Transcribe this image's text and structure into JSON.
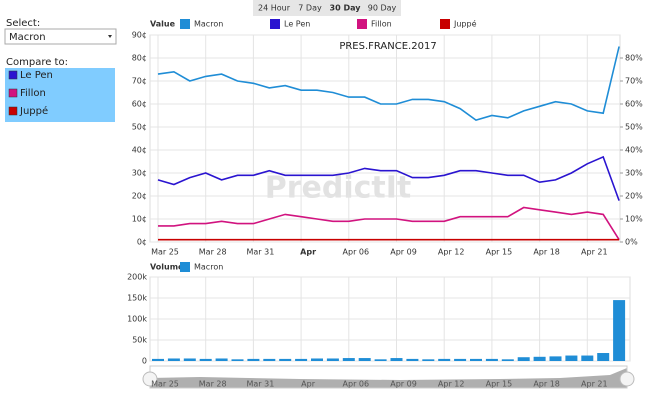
{
  "ui": {
    "select_label": "Select:",
    "select_value": "Macron",
    "compare_label": "Compare to:",
    "compare_items": [
      {
        "name": "Le Pen",
        "color": "#2a14d0"
      },
      {
        "name": "Fillon",
        "color": "#d1137f"
      },
      {
        "name": "Juppé",
        "color": "#c80000"
      }
    ],
    "tabs": [
      "24 Hour",
      "7 Day",
      "30 Day",
      "90 Day"
    ],
    "active_tab": 2
  },
  "chart_data": [
    {
      "type": "line",
      "title": "PRES.FRANCE.2017",
      "legend_title": "Value",
      "watermark": "PredictIt",
      "categories": [
        "Mar 25",
        null,
        null,
        "Mar 28",
        null,
        null,
        "Mar 31",
        null,
        null,
        "Apr",
        null,
        null,
        "Apr 06",
        null,
        null,
        "Apr 09",
        null,
        null,
        "Apr 12",
        null,
        null,
        "Apr 15",
        null,
        null,
        "Apr 18",
        null,
        null,
        "Apr 21",
        null,
        null
      ],
      "series": [
        {
          "name": "Macron",
          "color": "#1f8dd6",
          "values": [
            73,
            74,
            70,
            72,
            73,
            70,
            69,
            67,
            68,
            66,
            66,
            65,
            63,
            63,
            60,
            60,
            62,
            62,
            61,
            58,
            53,
            55,
            54,
            57,
            59,
            61,
            60,
            57,
            56,
            85
          ]
        },
        {
          "name": "Le Pen",
          "color": "#2a14d0",
          "values": [
            27,
            25,
            28,
            30,
            27,
            29,
            29,
            31,
            29,
            29,
            29,
            29,
            30,
            32,
            31,
            31,
            28,
            28,
            29,
            31,
            31,
            30,
            29,
            29,
            26,
            27,
            30,
            34,
            37,
            18
          ]
        },
        {
          "name": "Fillon",
          "color": "#d1137f",
          "values": [
            7,
            7,
            8,
            8,
            9,
            8,
            8,
            10,
            12,
            11,
            10,
            9,
            9,
            10,
            10,
            10,
            9,
            9,
            9,
            11,
            11,
            11,
            11,
            15,
            14,
            13,
            12,
            13,
            12,
            1
          ]
        },
        {
          "name": "Juppé",
          "color": "#c80000",
          "values": [
            1,
            1,
            1,
            1,
            1,
            1,
            1,
            1,
            1,
            1,
            1,
            1,
            1,
            1,
            1,
            1,
            1,
            1,
            1,
            1,
            1,
            1,
            1,
            1,
            1,
            1,
            1,
            1,
            1,
            1
          ]
        }
      ],
      "ylim": [
        0,
        90
      ],
      "yticks": [
        {
          "value": 0,
          "label": "0¢"
        },
        {
          "value": 10,
          "label": "10¢"
        },
        {
          "value": 20,
          "label": "20¢"
        },
        {
          "value": 30,
          "label": "30¢"
        },
        {
          "value": 40,
          "label": "40¢"
        },
        {
          "value": 50,
          "label": "50¢"
        },
        {
          "value": 60,
          "label": "60¢"
        },
        {
          "value": 70,
          "label": "70¢"
        },
        {
          "value": 80,
          "label": "80¢"
        },
        {
          "value": 90,
          "label": "90¢"
        }
      ],
      "y2lim": [
        0,
        90
      ],
      "y2ticks": [
        {
          "value": 0,
          "label": "0%"
        },
        {
          "value": 10,
          "label": "10%"
        },
        {
          "value": 20,
          "label": "20%"
        },
        {
          "value": 30,
          "label": "30%"
        },
        {
          "value": 40,
          "label": "40%"
        },
        {
          "value": 50,
          "label": "50%"
        },
        {
          "value": 60,
          "label": "60%"
        },
        {
          "value": 70,
          "label": "70%"
        },
        {
          "value": 80,
          "label": "80%"
        }
      ],
      "grid": true
    },
    {
      "type": "bar",
      "legend_title": "Volume",
      "series": [
        {
          "name": "Macron",
          "color": "#1f8dd6",
          "values": [
            5000,
            6000,
            6000,
            5000,
            6000,
            4000,
            5000,
            5000,
            5000,
            5000,
            6000,
            6000,
            7000,
            7000,
            4000,
            7000,
            5000,
            4000,
            5000,
            5000,
            5000,
            5000,
            4000,
            9000,
            10000,
            11000,
            13000,
            13000,
            19000,
            145000
          ]
        }
      ],
      "ylim": [
        0,
        200000
      ],
      "yticks": [
        0,
        {
          "value": 50000,
          "label": "50k"
        },
        {
          "value": 100000,
          "label": "100k"
        },
        {
          "value": 150000,
          "label": "150k"
        },
        {
          "value": 200000,
          "label": "200k"
        }
      ],
      "grid": true
    }
  ]
}
